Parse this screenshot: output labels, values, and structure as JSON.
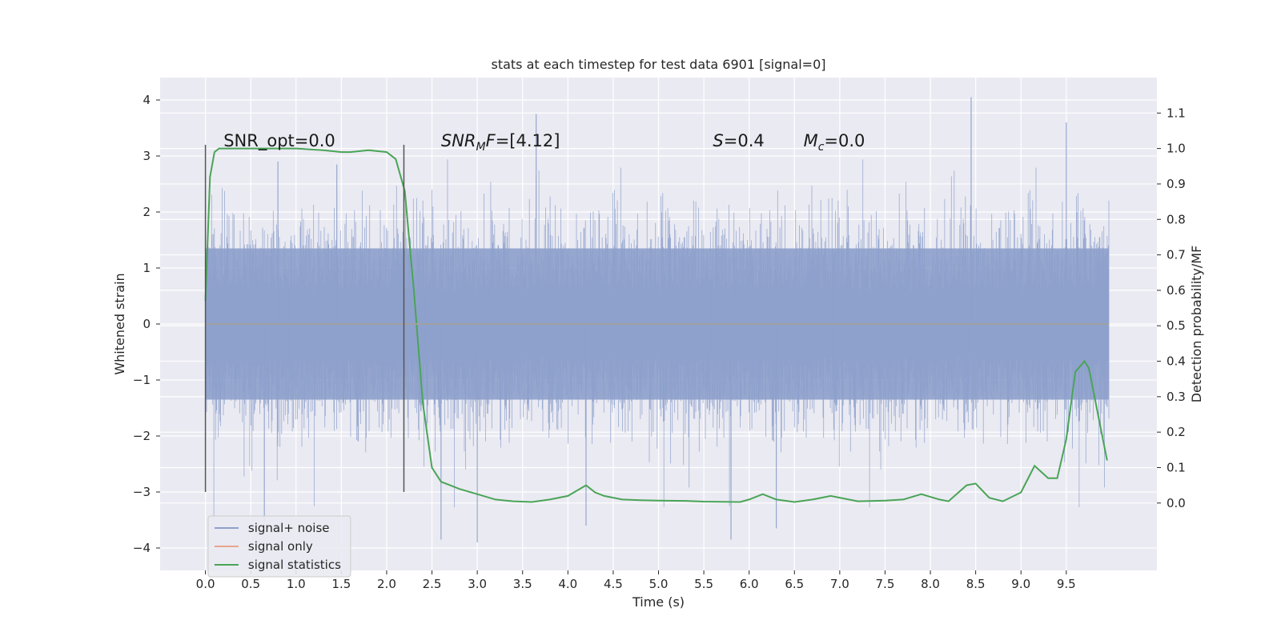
{
  "chart_data": {
    "type": "line",
    "title": "stats at each timestep for test data 6901 [signal=0]",
    "xlabel": "Time (s)",
    "ylabel": "Whitened strain",
    "y2label": "Detection probability/MF",
    "xlim": [
      -0.5,
      10.5
    ],
    "ylim": [
      -4.4,
      4.4
    ],
    "y2lim": [
      -0.19,
      1.2
    ],
    "xticks": [
      0.0,
      0.5,
      1.0,
      1.5,
      2.0,
      2.5,
      3.0,
      3.5,
      4.0,
      4.5,
      5.0,
      5.5,
      6.0,
      6.5,
      7.0,
      7.5,
      8.0,
      8.5,
      9.0,
      9.5
    ],
    "xtick_labels": [
      "0.0",
      "0.5",
      "1.0",
      "1.5",
      "2.0",
      "2.5",
      "3.0",
      "3.5",
      "4.0",
      "4.5",
      "5.0",
      "5.5",
      "6.0",
      "6.5",
      "7.0",
      "7.5",
      "8.0",
      "8.5",
      "9.0",
      "9.5"
    ],
    "yticks": [
      4,
      3,
      2,
      1,
      0,
      -1,
      -2,
      -3,
      -4
    ],
    "ytick_labels": [
      "4",
      "3",
      "2",
      "1",
      "0",
      "−1",
      "−2",
      "−3",
      "−4"
    ],
    "y2ticks": [
      1.1,
      1.0,
      0.9,
      0.8,
      0.7,
      0.6,
      0.5,
      0.4,
      0.3,
      0.2,
      0.1,
      0.0
    ],
    "y2tick_labels": [
      "1.1",
      "1.0",
      "0.9",
      "0.8",
      "0.7",
      "0.6",
      "0.5",
      "0.4",
      "0.3",
      "0.2",
      "0.1",
      "0.0"
    ],
    "grid": true,
    "legend_position": "lower-left",
    "annotations": {
      "snr_opt": "SNR_opt=0.0",
      "snr_mf_prefix": "SNR",
      "snr_mf_sub": "M",
      "snr_mf_suffix": "F=[4.12]",
      "s_label": "S",
      "s_value": "=0.4",
      "mc_label": "M",
      "mc_sub": "c",
      "mc_value": "=0.0"
    },
    "vertical_markers": [
      {
        "x": 0.0,
        "y_range": [
          -3.0,
          3.2
        ]
      },
      {
        "x": 2.19,
        "y_range": [
          -3.0,
          3.2
        ]
      }
    ],
    "series": [
      {
        "name": "signal+ noise",
        "color": "#8da0cb",
        "axis": "left",
        "kind": "noise",
        "x_range": [
          0.0,
          9.97
        ],
        "typical_range": [
          -2.0,
          2.0
        ],
        "extreme_range": [
          -3.9,
          4.05
        ]
      },
      {
        "name": "signal only",
        "color": "#e8a58c",
        "axis": "left",
        "x": [
          0.0,
          9.97
        ],
        "y": [
          0.0,
          0.0
        ]
      },
      {
        "name": "signal statistics",
        "color": "#4aa457",
        "axis": "right",
        "x": [
          0.0,
          0.05,
          0.1,
          0.15,
          0.2,
          0.3,
          0.5,
          0.7,
          1.0,
          1.3,
          1.5,
          1.6,
          1.8,
          2.0,
          2.1,
          2.2,
          2.3,
          2.4,
          2.5,
          2.6,
          2.7,
          2.8,
          3.0,
          3.2,
          3.4,
          3.6,
          3.8,
          4.0,
          4.1,
          4.2,
          4.3,
          4.4,
          4.6,
          4.8,
          5.0,
          5.3,
          5.5,
          5.9,
          6.0,
          6.15,
          6.3,
          6.5,
          6.7,
          6.9,
          7.2,
          7.5,
          7.7,
          7.9,
          8.1,
          8.2,
          8.4,
          8.5,
          8.65,
          8.8,
          9.0,
          9.15,
          9.3,
          9.4,
          9.5,
          9.6,
          9.7,
          9.75,
          9.85,
          9.95
        ],
        "y": [
          0.57,
          0.92,
          0.99,
          1.0,
          1.0,
          1.0,
          1.0,
          1.0,
          1.0,
          0.995,
          0.99,
          0.99,
          0.995,
          0.99,
          0.97,
          0.88,
          0.6,
          0.28,
          0.1,
          0.06,
          0.05,
          0.04,
          0.025,
          0.01,
          0.005,
          0.003,
          0.01,
          0.02,
          0.035,
          0.05,
          0.03,
          0.02,
          0.01,
          0.008,
          0.007,
          0.006,
          0.004,
          0.003,
          0.01,
          0.025,
          0.01,
          0.003,
          0.01,
          0.02,
          0.005,
          0.007,
          0.01,
          0.025,
          0.01,
          0.005,
          0.05,
          0.055,
          0.015,
          0.005,
          0.03,
          0.105,
          0.07,
          0.07,
          0.18,
          0.37,
          0.4,
          0.38,
          0.25,
          0.12
        ]
      }
    ]
  }
}
